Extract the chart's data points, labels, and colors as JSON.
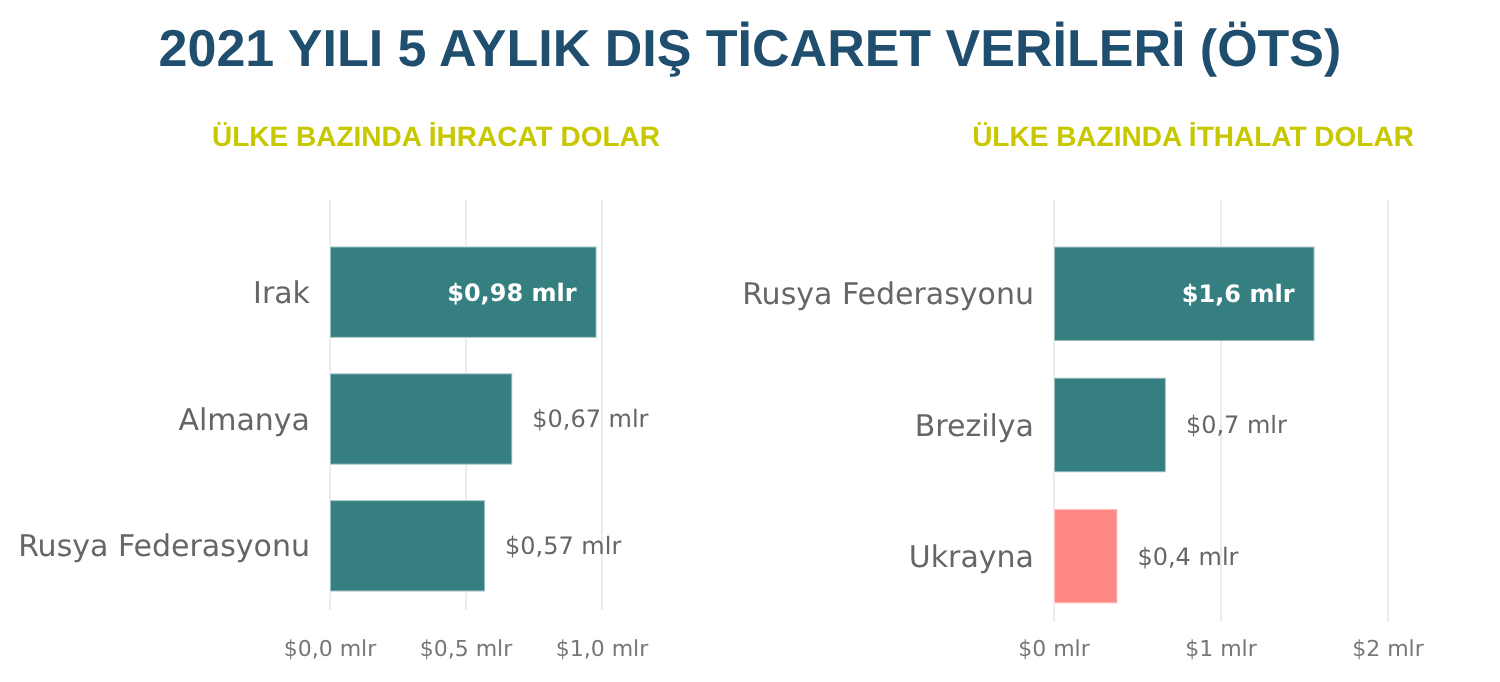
{
  "chart_data": [
    {
      "type": "bar",
      "orientation": "horizontal",
      "title": "2021 YILI 5 AYLIK DIŞ TİCARET VERİLERİ (ÖTS)",
      "subtitle": "ÜLKE BAZINDA İHRACAT DOLAR",
      "categories": [
        "Irak",
        "Almanya",
        "Rusya Federasyonu"
      ],
      "values": [
        0.98,
        0.67,
        0.57
      ],
      "colors": [
        "#367f80",
        "#367f80",
        "#367f80"
      ],
      "value_labels": [
        "$0,98 mlr",
        "$0,67 mlr",
        "$0,57 mlr"
      ],
      "xlim": [
        0,
        1.0
      ],
      "xticks": [
        {
          "value": 0,
          "label": "$0,0 mlr"
        },
        {
          "value": 0.5,
          "label": "$0,5 mlr"
        },
        {
          "value": 1.0,
          "label": "$1,0 mlr"
        }
      ],
      "grid": "x"
    },
    {
      "type": "bar",
      "orientation": "horizontal",
      "subtitle": "ÜLKE BAZINDA İTHALAT DOLAR",
      "categories": [
        "Rusya Federasyonu",
        "Brezilya",
        "Ukrayna"
      ],
      "values": [
        1.56,
        0.67,
        0.38
      ],
      "colors": [
        "#367f80",
        "#367f80",
        "#ff8784"
      ],
      "value_labels": [
        "$1,6 mlr",
        "$0,7 mlr",
        "$0,4 mlr"
      ],
      "xlim": [
        0,
        2
      ],
      "xticks": [
        {
          "value": 0,
          "label": "$0 mlr"
        },
        {
          "value": 1,
          "label": "$1 mlr"
        },
        {
          "value": 2,
          "label": "$2 mlr"
        }
      ],
      "grid": "x"
    }
  ]
}
